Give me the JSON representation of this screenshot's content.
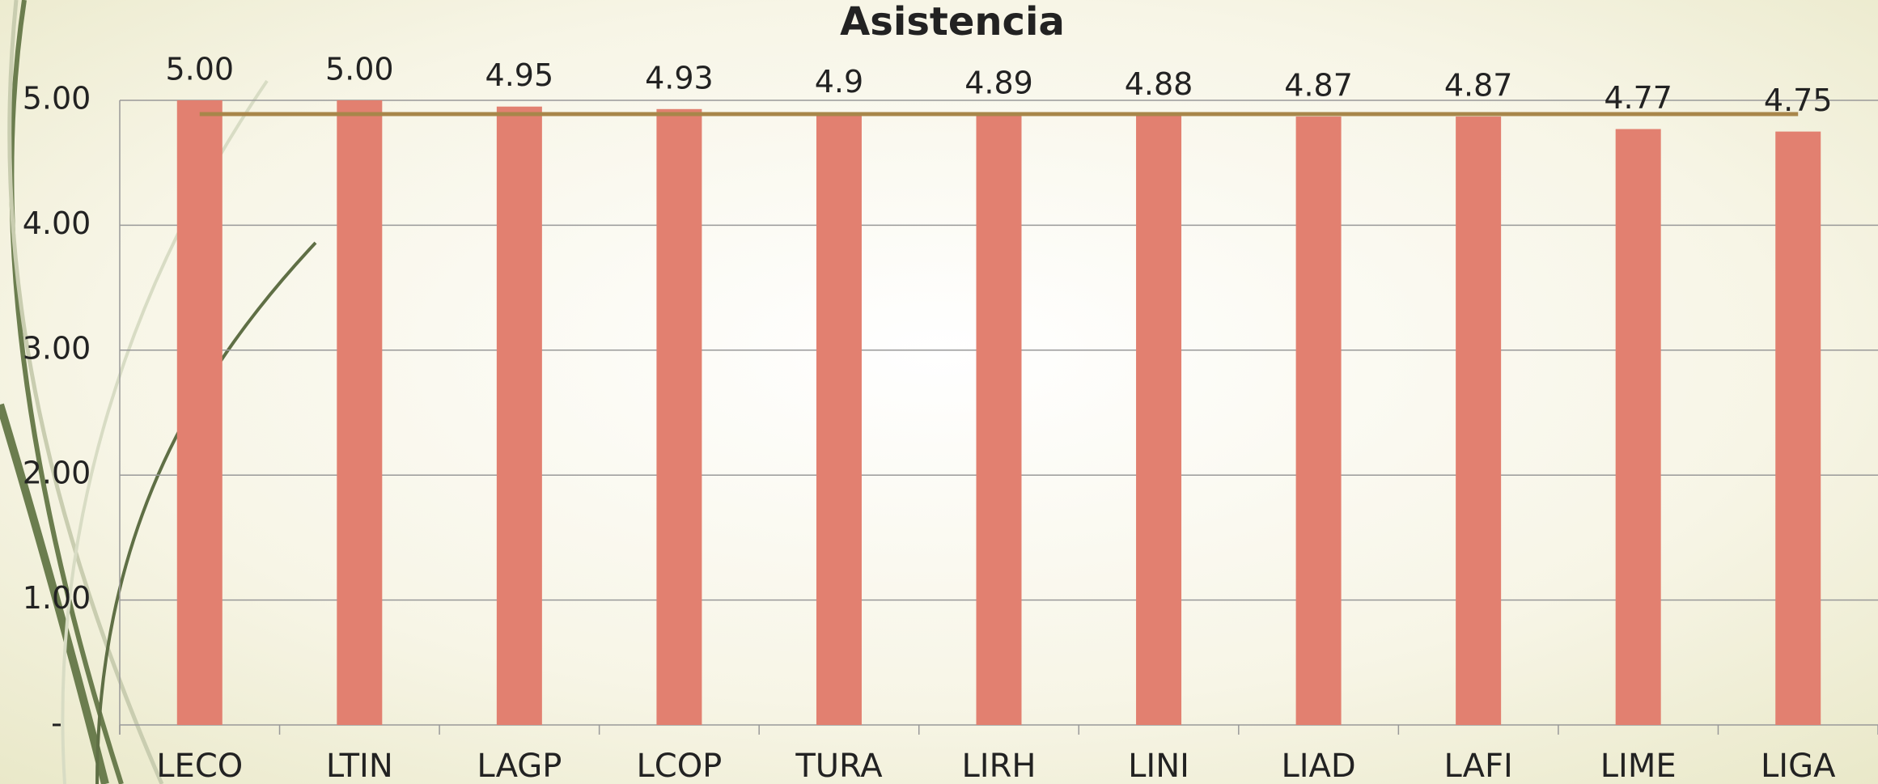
{
  "chart_data": {
    "type": "bar",
    "title": "Asistencia",
    "categories": [
      "LECO",
      "LTIN",
      "LAGP",
      "LCOP",
      "TURA",
      "LIRH",
      "LINI",
      "LIAD",
      "LAFI",
      "LIME",
      "LIGA"
    ],
    "series": [
      {
        "color": "#e28070",
        "values": [
          5.0,
          5.0,
          4.95,
          4.93,
          4.9,
          4.89,
          4.88,
          4.87,
          4.87,
          4.77,
          4.75
        ],
        "value_labels": [
          "5.00",
          "5.00",
          "4.95",
          "4.93",
          "4.9",
          "4.89",
          "4.88",
          "4.87",
          "4.87",
          "4.77",
          "4.75"
        ]
      },
      {
        "type": "line",
        "color": "#a8864a",
        "values": [
          4.89,
          4.89,
          4.89,
          4.89,
          4.89,
          4.89,
          4.89,
          4.89,
          4.89,
          4.89,
          4.89
        ]
      }
    ],
    "ylim": [
      0,
      5
    ],
    "yticks": [
      {
        "value": 0,
        "label": "-"
      },
      {
        "value": 1,
        "label": "1.00"
      },
      {
        "value": 2,
        "label": "2.00"
      },
      {
        "value": 3,
        "label": "3.00"
      },
      {
        "value": 4,
        "label": "4.00"
      },
      {
        "value": 5,
        "label": "5.00"
      }
    ],
    "grid": true
  }
}
